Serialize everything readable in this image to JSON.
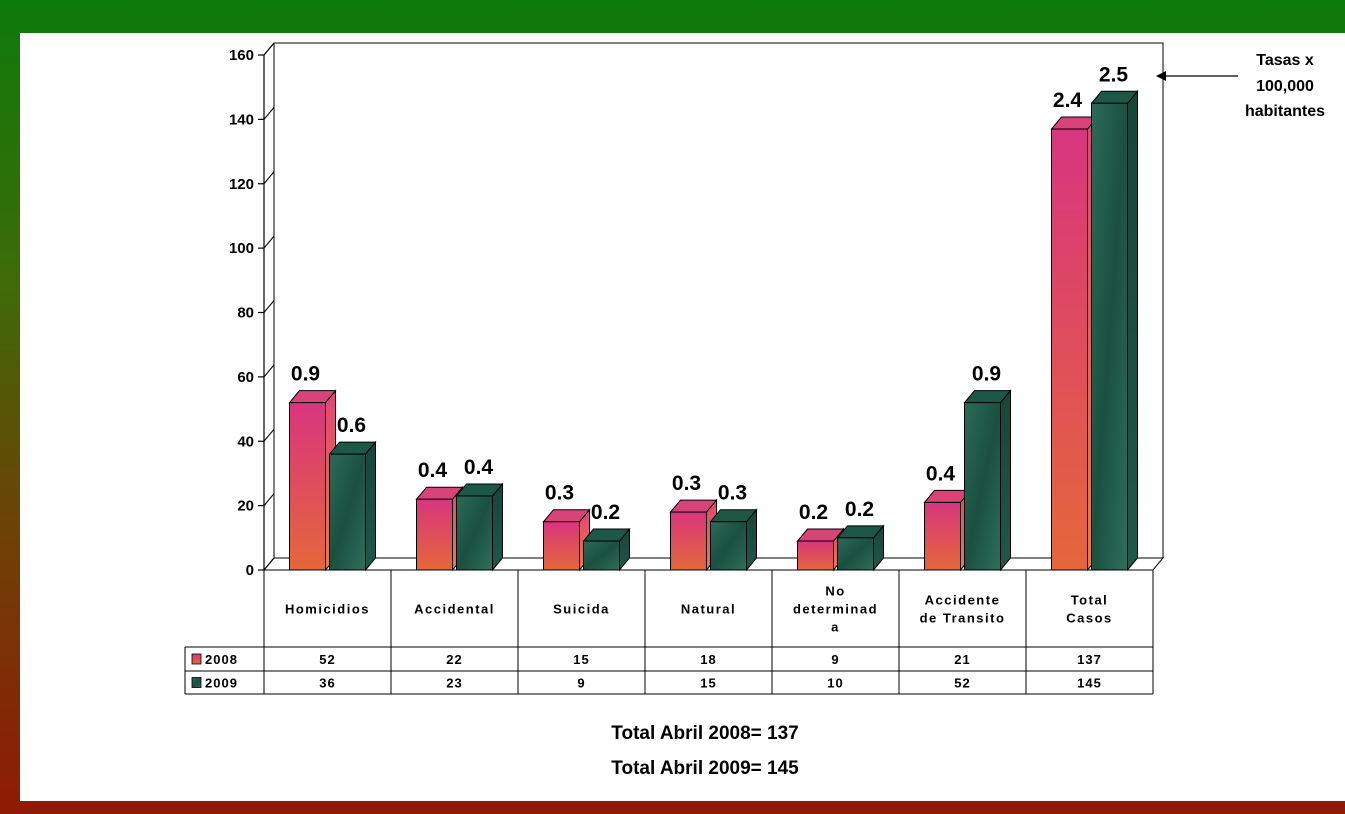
{
  "colors": {
    "series_2008_front_top": "#d63a7a",
    "series_2008_front_bottom": "#e8653a",
    "series_2009": "#1f5d4a",
    "frame": "#000000"
  },
  "chart_data": {
    "type": "bar",
    "categories": [
      "Homicidios",
      "Accidental",
      "Suicida",
      "Natural",
      "No determinada",
      "Accidente de Transito",
      "Total Casos"
    ],
    "category_lines": [
      [
        "Homicidios"
      ],
      [
        "Accidental"
      ],
      [
        "Suicida"
      ],
      [
        "Natural"
      ],
      [
        "No",
        "determinad",
        "a"
      ],
      [
        "Accidente",
        "de Transito"
      ],
      [
        "Total",
        "Casos"
      ]
    ],
    "series": [
      {
        "name": "2008",
        "values": [
          52,
          22,
          15,
          18,
          9,
          21,
          137
        ],
        "rate_labels": [
          "0.9",
          "0.4",
          "0.3",
          "0.3",
          "0.2",
          "0.4",
          "2.4"
        ]
      },
      {
        "name": "2009",
        "values": [
          36,
          23,
          9,
          15,
          10,
          52,
          145
        ],
        "rate_labels": [
          "0.6",
          "0.4",
          "0.2",
          "0.3",
          "0.2",
          "0.9",
          "2.5"
        ]
      }
    ],
    "ylim": [
      0,
      160
    ],
    "yticks": [
      0,
      20,
      40,
      60,
      80,
      100,
      120,
      140,
      160
    ],
    "annotation": [
      "Tasas x",
      "100,000",
      "habitantes"
    ],
    "totals": [
      "Total Abril  2008= 137",
      "Total Abril  2009= 145"
    ],
    "grid": false,
    "legend": "data-table"
  }
}
